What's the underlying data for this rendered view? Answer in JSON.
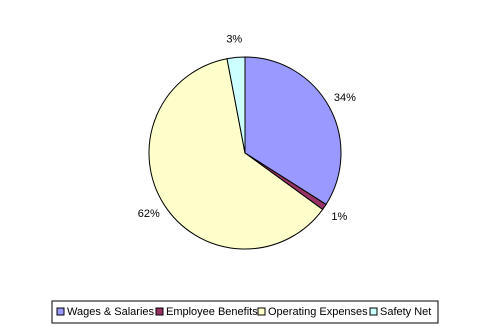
{
  "chart_data": {
    "type": "pie",
    "categories": [
      "Wages & Salaries",
      "Employee Benefits",
      "Operating Expenses",
      "Safety Net"
    ],
    "values": [
      34,
      1,
      62,
      3
    ],
    "value_labels": [
      "34%",
      "1%",
      "62%",
      "3%"
    ],
    "colors": [
      "#9999ff",
      "#993366",
      "#ffffcc",
      "#ccffff"
    ],
    "legend": "bottom"
  }
}
